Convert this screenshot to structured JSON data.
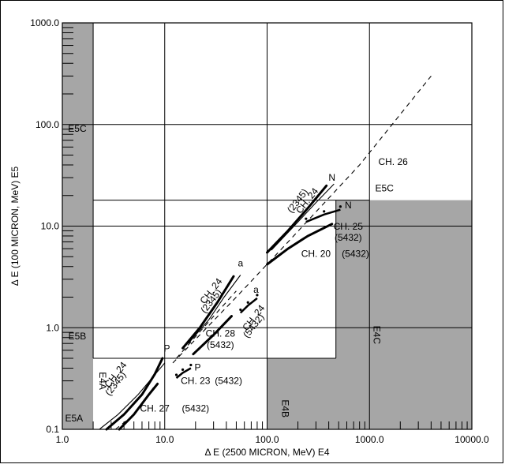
{
  "chart_data": {
    "type": "line",
    "xlabel": "Δ E (2500 MICRON, MeV) E4",
    "ylabel": "Δ E (100 MICRON, MeV) E5",
    "x_scale": "log",
    "y_scale": "log",
    "xlim": [
      1.0,
      10000.0
    ],
    "ylim": [
      0.1,
      1000.0
    ],
    "x_ticks": [
      "1.0",
      "10.0",
      "100.0",
      "1000.0",
      "10000.0"
    ],
    "y_ticks": [
      "0.1",
      "1.0",
      "10.0",
      "100.0",
      "1000.0"
    ],
    "grid": true,
    "regions": [
      {
        "label": "E5A",
        "x": 1.3,
        "y": 0.12
      },
      {
        "label": "E5B",
        "x": 1.4,
        "y": 0.77
      },
      {
        "label": "E5C",
        "x": 1.4,
        "y": 85
      },
      {
        "label": "E4A",
        "x": 2.3,
        "y": 0.3,
        "rotated": true
      },
      {
        "label": "E4B",
        "x": 140,
        "y": 0.16,
        "rotated": true
      },
      {
        "label": "E4C",
        "x": 1100,
        "y": 0.85,
        "rotated": true
      },
      {
        "label": "E5C",
        "x": 1400,
        "y": 22
      },
      {
        "label": "CH. 26",
        "x": 1700,
        "y": 40
      }
    ],
    "series": [
      {
        "points": [
          [
            2.7,
            0.1
          ],
          [
            4,
            0.14
          ],
          [
            6,
            0.22
          ],
          [
            8,
            0.35
          ],
          [
            9.5,
            0.5
          ]
        ],
        "style": "thick"
      },
      {
        "points": [
          [
            2.3,
            0.1
          ],
          [
            3.5,
            0.14
          ],
          [
            5.5,
            0.22
          ],
          [
            8.5,
            0.37
          ],
          [
            10,
            0.45
          ]
        ],
        "style": "thin"
      },
      {
        "points": [
          [
            3.6,
            0.1
          ],
          [
            5,
            0.14
          ],
          [
            7,
            0.22
          ],
          [
            8.5,
            0.28
          ]
        ],
        "style": "thick"
      },
      {
        "points": [
          [
            3.3,
            0.1
          ],
          [
            4.6,
            0.13
          ],
          [
            6.3,
            0.19
          ],
          [
            8,
            0.27
          ]
        ],
        "style": "dashed"
      },
      {
        "points": [
          [
            13,
            0.32
          ],
          [
            15,
            0.36
          ],
          [
            18,
            0.4
          ]
        ],
        "style": "dotted-thick"
      },
      {
        "points": [
          [
            15,
            0.63
          ],
          [
            22,
            1.0
          ],
          [
            33,
            1.8
          ],
          [
            47,
            3.2
          ]
        ],
        "style": "thick"
      },
      {
        "points": [
          [
            17,
            0.7
          ],
          [
            27,
            1.2
          ],
          [
            38,
            2.0
          ],
          [
            55,
            3.3
          ]
        ],
        "style": "thin"
      },
      {
        "points": [
          [
            19,
            0.55
          ],
          [
            30,
            0.85
          ],
          [
            45,
            1.3
          ]
        ],
        "style": "thick"
      },
      {
        "points": [
          [
            13,
            0.5
          ],
          [
            28,
            1.2
          ],
          [
            50,
            2.3
          ]
        ],
        "style": "dashed"
      },
      {
        "points": [
          [
            55,
            1.4
          ],
          [
            65,
            1.65
          ],
          [
            80,
            1.95
          ]
        ],
        "style": "dotted-thick"
      },
      {
        "points": [
          [
            100,
            5.5
          ],
          [
            160,
            9
          ],
          [
            250,
            15
          ],
          [
            380,
            25
          ]
        ],
        "style": "thick"
      },
      {
        "points": [
          [
            110,
            5.8
          ],
          [
            200,
            11
          ],
          [
            300,
            17
          ],
          [
            450,
            26
          ]
        ],
        "style": "thin"
      },
      {
        "points": [
          [
            100,
            4.2
          ],
          [
            160,
            6.0
          ],
          [
            250,
            8.0
          ],
          [
            430,
            10.5
          ]
        ],
        "style": "thick"
      },
      {
        "points": [
          [
            240,
            11
          ],
          [
            360,
            13
          ],
          [
            520,
            14.5
          ]
        ],
        "style": "dotted-thick"
      },
      {
        "points": [
          [
            12,
            0.45
          ],
          [
            50,
            2.0
          ],
          [
            150,
            6.5
          ],
          [
            800,
            40
          ],
          [
            4000,
            300
          ]
        ],
        "style": "dashed"
      }
    ],
    "annotations": [
      {
        "text": "N",
        "x": 430,
        "y": 28
      },
      {
        "text": "N",
        "x": 620,
        "y": 15
      },
      {
        "text": "a",
        "x": 55,
        "y": 4.0
      },
      {
        "text": "a",
        "x": 78,
        "y": 2.2
      },
      {
        "text": "P",
        "x": 10.5,
        "y": 0.58
      },
      {
        "text": "P",
        "x": 21,
        "y": 0.38
      },
      {
        "text": "CH. 24",
        "x": 260,
        "y": 17,
        "rotated": true
      },
      {
        "text": "(2345)",
        "x": 210,
        "y": 17,
        "rotated": true
      },
      {
        "text": "CH. 25",
        "x": 620,
        "y": 9.2
      },
      {
        "text": "(5432)",
        "x": 620,
        "y": 7.2
      },
      {
        "text": "CH. 20",
        "x": 300,
        "y": 5.0
      },
      {
        "text": "(5432)",
        "x": 730,
        "y": 5.0
      },
      {
        "text": "CH. 24",
        "x": 30,
        "y": 2.2,
        "rotated": true
      },
      {
        "text": "(2345)",
        "x": 30,
        "y": 1.75,
        "rotated": true
      },
      {
        "text": "CH. 24",
        "x": 78,
        "y": 1.2,
        "rotated": true
      },
      {
        "text": "(5432)",
        "x": 78,
        "y": 1.0,
        "rotated": true
      },
      {
        "text": "CH. 28",
        "x": 35,
        "y": 0.82
      },
      {
        "text": "(5432)",
        "x": 35,
        "y": 0.63
      },
      {
        "text": "CH. 23",
        "x": 20,
        "y": 0.28
      },
      {
        "text": "(5432)",
        "x": 42,
        "y": 0.28
      },
      {
        "text": "CH. 24",
        "x": 3.5,
        "y": 0.33,
        "rotated": true
      },
      {
        "text": "(2345)",
        "x": 3.5,
        "y": 0.27,
        "rotated": true
      },
      {
        "text": "CH. 27",
        "x": 8,
        "y": 0.15
      },
      {
        "text": "(5432)",
        "x": 20,
        "y": 0.15
      }
    ]
  }
}
